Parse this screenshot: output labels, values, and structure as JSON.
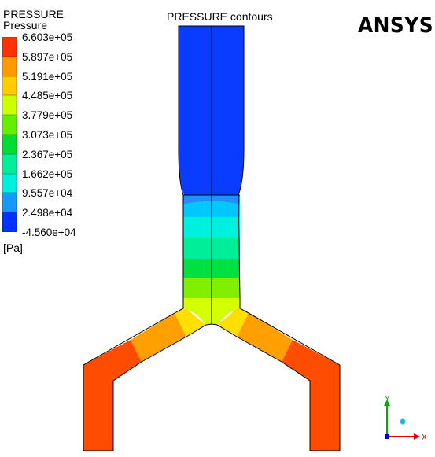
{
  "window": {
    "title": "PRESSURE contours",
    "logo": "ANSYS"
  },
  "legend": {
    "title": "PRESSURE",
    "subtitle": "Pressure",
    "unit": "[Pa]",
    "levels": [
      {
        "label": "6.603e+05",
        "color": "#ff3300"
      },
      {
        "label": "5.897e+05",
        "color": "#ff9900"
      },
      {
        "label": "5.191e+05",
        "color": "#ffcc00"
      },
      {
        "label": "4.485e+05",
        "color": "#ccff00"
      },
      {
        "label": "3.779e+05",
        "color": "#66ee00"
      },
      {
        "label": "3.073e+05",
        "color": "#00dd33"
      },
      {
        "label": "2.367e+05",
        "color": "#00ee99"
      },
      {
        "label": "1.662e+05",
        "color": "#00eedd"
      },
      {
        "label": "9.557e+04",
        "color": "#00ddff"
      },
      {
        "label": "2.498e+04",
        "color": "#1499ff"
      },
      {
        "label": "-4.560e+04",
        "color": "#0033ff"
      }
    ]
  },
  "axes": {
    "y_label": "Y",
    "x_label": "X",
    "y_color": "#00aa00",
    "x_color": "#dd0000",
    "z_color": "#0000cc"
  }
}
